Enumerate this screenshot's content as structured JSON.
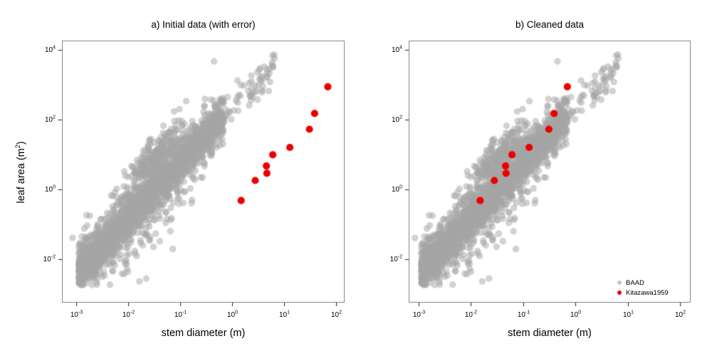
{
  "figure": {
    "background": "#ffffff",
    "frame_color": "#8a8a8a",
    "tick_color": "#1a1a1a",
    "text_color": "#000000",
    "baad_point_color": "#a5a5a5",
    "baad_point_opacity": 0.5,
    "kitazawa_point_color": "#ee0000"
  },
  "panel_a": {
    "title": "a) Initial data (with error)",
    "xlabel": "stem diameter (m)",
    "ylabel_pre": "leaf area  (m",
    "ylabel_sup": "2",
    "ylabel_post": ")"
  },
  "panel_b": {
    "title": "b) Cleaned data",
    "xlabel": "stem diameter (m)"
  },
  "legend": {
    "items": [
      {
        "label": "BAAD",
        "color": "#c7c7c7"
      },
      {
        "label": "Kitazawa1959",
        "color": "#ee0000"
      }
    ]
  },
  "chart_data": [
    {
      "type": "scatter",
      "panel": "a",
      "title": "a) Initial data (with error)",
      "xlabel": "stem diameter (m)",
      "ylabel": "leaf area (m²)",
      "x_scale": "log10",
      "y_scale": "log10",
      "xlim_log": [
        -3.26,
        2.155
      ],
      "ylim_log": [
        -3.224,
        4.255
      ],
      "x_ticks": [
        0.001,
        0.01,
        0.1,
        1,
        10,
        100
      ],
      "y_ticks": [
        10000,
        100,
        1,
        0.01
      ],
      "grid": false,
      "legend_position": "none",
      "series": [
        {
          "name": "BAAD",
          "marker": "circle",
          "marker_radius": 4.7,
          "color": "#a5a5a5",
          "opacity": 0.5,
          "points": "procedural_approximation_of_dense_cloud",
          "note": "~2560-point gray cloud of BAAD allometry records; identical point set in both panels; approximated by seeded generator below (log10 space: logy = slope*logx + offset + noise)",
          "generator": {
            "seed": 7,
            "slope": 1.56,
            "global_clip_logx": [
              -3.1,
              0.85
            ],
            "global_clip_logy": [
              -2.75,
              3.97
            ],
            "components": [
              {
                "n": 1900,
                "x_dist": "power_uniform",
                "x_lo": -2.95,
                "x_hi": -0.15,
                "x_pow": 1.2,
                "y_offset": 2.3,
                "y_sd": 0.3
              },
              {
                "n": 260,
                "x_dist": "normal",
                "x_mu": -1.52,
                "x_sd": 0.3,
                "x_clip": [
                  -2.3,
                  -0.9
                ],
                "y_offset": 3.18,
                "y_sd": 0.3
              },
              {
                "n": 85,
                "x_dist": "power_uniform",
                "x_lo": -0.45,
                "x_hi": 0.82,
                "x_pow": 0.9,
                "y_offset": 2.32,
                "y_sd": 0.27
              },
              {
                "n": 55,
                "x_dist": "power_uniform",
                "x_lo": -2.6,
                "x_hi": -0.7,
                "x_pow": 1.0,
                "y_offset": 1.3,
                "y_sd": 0.4
              },
              {
                "n": 260,
                "x_dist": "power_uniform",
                "x_lo": -2.95,
                "x_hi": -0.3,
                "x_pow": 1.1,
                "y_offset": 2.3,
                "y_sd": 0.65
              }
            ],
            "extra_points_log": [
              [
                -3.07,
                -1.39
              ],
              [
                -1.14,
                -1.71
              ],
              [
                -2.0,
                -2.36
              ]
            ]
          }
        },
        {
          "name": "Kitazawa1959",
          "marker": "circle",
          "marker_radius": 5.1,
          "color": "#ee0000",
          "x": [
            1.5,
            2.8,
            4.7,
            4.6,
            6.1,
            13,
            31,
            39,
            70
          ],
          "y": [
            0.48,
            1.8,
            2.9,
            4.7,
            9.8,
            16,
            53,
            150,
            870
          ]
        }
      ]
    },
    {
      "type": "scatter",
      "panel": "b",
      "title": "b) Cleaned data",
      "xlabel": "stem diameter (m)",
      "ylabel": "leaf area (m²)",
      "x_scale": "log10",
      "y_scale": "log10",
      "xlim_log": [
        -3.177,
        2.19
      ],
      "ylim_log": [
        -3.224,
        4.255
      ],
      "x_ticks": [
        0.001,
        0.01,
        0.1,
        1,
        10,
        100
      ],
      "y_ticks": [
        10000,
        100,
        1,
        0.01
      ],
      "grid": false,
      "legend_position": "bottom-right",
      "series": [
        {
          "name": "BAAD",
          "marker": "circle",
          "marker_radius": 4.7,
          "color": "#a5a5a5",
          "opacity": 0.5,
          "points": "same_cloud_as_panel_a"
        },
        {
          "name": "Kitazawa1959",
          "marker": "circle",
          "marker_radius": 5.1,
          "color": "#ee0000",
          "x": [
            0.015,
            0.028,
            0.047,
            0.046,
            0.061,
            0.13,
            0.31,
            0.39,
            0.7
          ],
          "y": [
            0.48,
            1.8,
            2.9,
            4.7,
            9.8,
            16,
            53,
            150,
            870
          ]
        }
      ]
    }
  ]
}
